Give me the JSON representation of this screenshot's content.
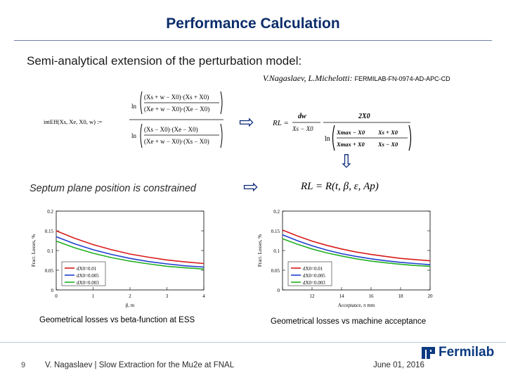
{
  "slide": {
    "title": "Performance Calculation",
    "subtitle": "Semi-analytical extension of the perturbation model:",
    "citation_authors": "V.Nagaslaev, L.Michelotti: ",
    "citation_ref": "FERMILAB-FN-0974-AD-APC-CD",
    "septum_text": "Septum plane position is constrained",
    "caption_left": "Geometrical losses vs beta-function at ESS",
    "caption_right": "Geometrical losses vs machine acceptance",
    "page_number": "9",
    "footer_text": "V. Nagaslaev | Slow Extraction for the Mu2e at FNAL",
    "footer_date": "June 01, 2016",
    "logo_text": "Fermilab"
  },
  "formulas": {
    "left_lhs": "intEff(Xs, Xe, X0, w) :=",
    "left_ln": "ln",
    "left_num_top": "(Xs + w − X0)·(Xs + X0)",
    "left_num_bot": "(Xe + w − X0)·(Xe − X0)",
    "left_den_top": "(Xs − X0)·(Xe − X0)",
    "left_den_bot": "(Xe + w − X0)·(Xs − X0)",
    "right_lhs": "RL =",
    "right_num": "dw",
    "right_den": "Xs − X0",
    "right_frac_num": "2X0",
    "right_max_top": "Xmax − X0",
    "right_max_top_b": "Xs + X0",
    "right_max_bot": "Xmax + X0",
    "right_max_bot_b": "Xs − X0",
    "second_formula": "RL = R(t, β, ε, Ap)"
  },
  "chart_data": [
    {
      "type": "line",
      "title": "",
      "xlabel": "β, m",
      "ylabel": "Fract. Losses, %",
      "x": [
        0,
        0.5,
        1,
        1.5,
        2,
        2.5,
        3,
        3.5,
        4
      ],
      "xlim": [
        0,
        4
      ],
      "ylim": [
        0,
        0.2
      ],
      "x_ticks": [
        "0",
        "1",
        "2",
        "3",
        "4"
      ],
      "y_ticks": [
        "0",
        "0.05",
        "0.1",
        "0.15",
        "0.2"
      ],
      "legend": "bottom-left",
      "series": [
        {
          "name": "dX0=0.01",
          "color": "#d81b1b",
          "values": [
            0.15,
            0.131,
            0.115,
            0.102,
            0.091,
            0.083,
            0.076,
            0.071,
            0.067
          ]
        },
        {
          "name": "dX0=0.005",
          "color": "#1f3fd0",
          "values": [
            0.135,
            0.117,
            0.102,
            0.09,
            0.08,
            0.072,
            0.066,
            0.061,
            0.058
          ]
        },
        {
          "name": "dX0=0.003",
          "color": "#22b022",
          "values": [
            0.124,
            0.107,
            0.093,
            0.082,
            0.073,
            0.066,
            0.06,
            0.056,
            0.053
          ]
        }
      ]
    },
    {
      "type": "line",
      "title": "",
      "xlabel": "Acceptance, π mm",
      "ylabel": "Fract. Losses, %",
      "x": [
        10,
        11,
        12,
        13,
        14,
        15,
        16,
        17,
        18,
        19,
        20
      ],
      "xlim": [
        10,
        20
      ],
      "ylim": [
        0,
        0.2
      ],
      "x_ticks": [
        "",
        "12",
        "14",
        "16",
        "18",
        "20"
      ],
      "y_ticks": [
        "0",
        "0.05",
        "0.1",
        "0.15",
        "0.2"
      ],
      "legend": "bottom-left",
      "series": [
        {
          "name": "dX0=0.01",
          "color": "#d81b1b",
          "values": [
            0.152,
            0.137,
            0.124,
            0.113,
            0.104,
            0.096,
            0.09,
            0.085,
            0.08,
            0.077,
            0.074
          ]
        },
        {
          "name": "dX0=0.005",
          "color": "#1f3fd0",
          "values": [
            0.14,
            0.125,
            0.112,
            0.101,
            0.092,
            0.085,
            0.079,
            0.074,
            0.07,
            0.067,
            0.064
          ]
        },
        {
          "name": "dX0=0.003",
          "color": "#22b022",
          "values": [
            0.13,
            0.116,
            0.104,
            0.094,
            0.086,
            0.079,
            0.073,
            0.069,
            0.065,
            0.062,
            0.06
          ]
        }
      ]
    }
  ]
}
